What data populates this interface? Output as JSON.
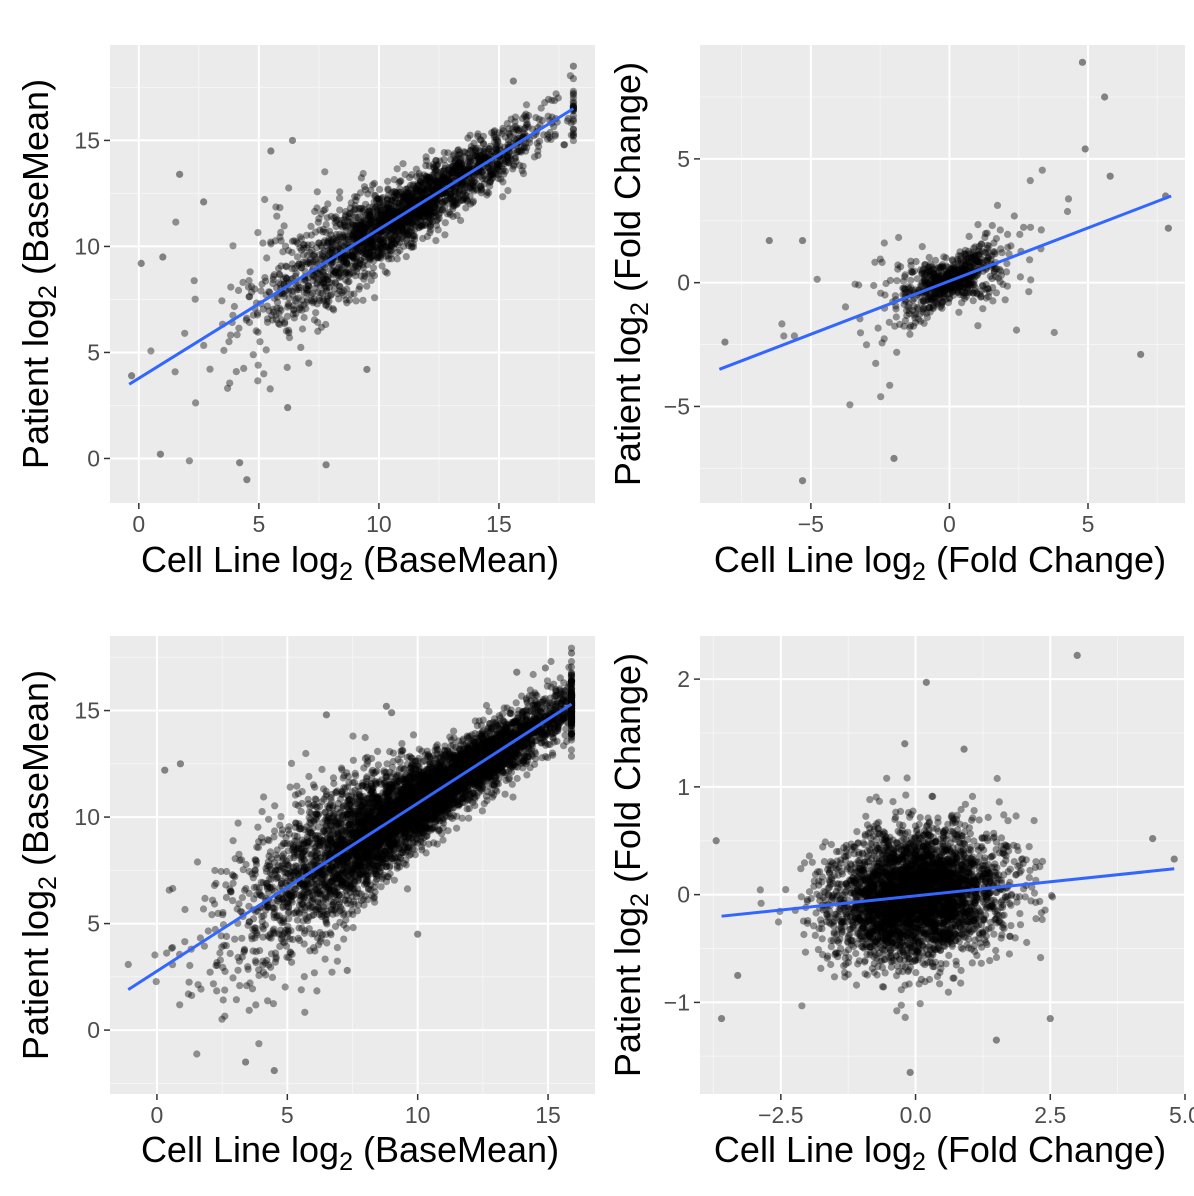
{
  "colors": {
    "panel_bg": "#ebebeb",
    "grid_major": "#ffffff",
    "points": "#000000",
    "fit_line": "#3366ff",
    "tick_text": "#4d4d4d"
  },
  "chart_data": [
    {
      "type": "scatter",
      "xlabel": "Cell Line log2 (BaseMean)",
      "ylabel": "Patient log2 (BaseMean)",
      "xlabel_parts": {
        "pre": "Cell Line log",
        "sub": "2",
        "post": " (BaseMean)"
      },
      "ylabel_parts": {
        "pre": "Patient log",
        "sub": "2",
        "post": " (BaseMean)"
      },
      "xlim": [
        -1.2,
        19
      ],
      "ylim": [
        -2.1,
        19.5
      ],
      "xticks": [
        0,
        5,
        10,
        15
      ],
      "yticks": [
        0,
        5,
        10,
        15
      ],
      "xtick_labels": [
        "0",
        "5",
        "10",
        "15"
      ],
      "ytick_labels": [
        "0",
        "5",
        "10",
        "15"
      ],
      "grid": true,
      "fit_line": {
        "x": [
          -0.4,
          18.1
        ],
        "y": [
          3.5,
          16.5
        ]
      },
      "point_cloud": {
        "n": 2200,
        "x_center": 11,
        "x_sd": 3.0,
        "y_noise_sd": 1.2,
        "min_x": -0.4,
        "max_x": 18.1
      },
      "outliers": [
        {
          "x": -0.3,
          "y": 3.9
        },
        {
          "x": 0.1,
          "y": 9.2
        },
        {
          "x": 1.0,
          "y": 9.5
        },
        {
          "x": 1.7,
          "y": 13.4
        },
        {
          "x": 4.2,
          "y": -0.2
        },
        {
          "x": 4.5,
          "y": -1.0
        },
        {
          "x": 7.8,
          "y": -0.3
        },
        {
          "x": 6.2,
          "y": 2.4
        },
        {
          "x": 15.6,
          "y": 17.8
        },
        {
          "x": 18.1,
          "y": 18.5
        },
        {
          "x": 0.9,
          "y": 0.2
        },
        {
          "x": 2.7,
          "y": 12.1
        },
        {
          "x": 5.5,
          "y": 14.5
        },
        {
          "x": 6.4,
          "y": 15.0
        },
        {
          "x": 9.5,
          "y": 4.2
        }
      ]
    },
    {
      "type": "scatter",
      "xlabel": "Cell Line log2 (Fold Change)",
      "ylabel": "Patient log2 (Fold Change)",
      "xlabel_parts": {
        "pre": "Cell Line log",
        "sub": "2",
        "post": " (Fold Change)"
      },
      "ylabel_parts": {
        "pre": "Patient log",
        "sub": "2",
        "post": " (Fold Change)"
      },
      "xlim": [
        -9.0,
        8.5
      ],
      "ylim": [
        -8.9,
        9.6
      ],
      "xticks": [
        -5,
        0,
        5
      ],
      "yticks": [
        -5,
        0,
        5
      ],
      "xtick_labels": [
        "−5",
        "0",
        "5"
      ],
      "ytick_labels": [
        "−5",
        "0",
        "5"
      ],
      "grid": true,
      "fit_line": {
        "x": [
          -8.3,
          8.0
        ],
        "y": [
          -3.5,
          3.5
        ]
      },
      "point_cloud": {
        "n": 700,
        "x_center": 0,
        "x_sd": 1.3,
        "y_noise_sd": 0.9,
        "min_x": -8.3,
        "max_x": 8.0
      },
      "outliers": [
        {
          "x": 4.8,
          "y": 8.9
        },
        {
          "x": 5.6,
          "y": 7.5
        },
        {
          "x": 4.9,
          "y": 5.4
        },
        {
          "x": 7.8,
          "y": 3.5
        },
        {
          "x": 6.9,
          "y": -2.9
        },
        {
          "x": -5.3,
          "y": -8.0
        },
        {
          "x": -2.0,
          "y": -7.1
        },
        {
          "x": -8.1,
          "y": -2.4
        },
        {
          "x": -6.5,
          "y": 1.7
        },
        {
          "x": -5.3,
          "y": 1.7
        },
        {
          "x": 7.9,
          "y": 2.2
        },
        {
          "x": 5.8,
          "y": 4.3
        }
      ]
    },
    {
      "type": "scatter",
      "xlabel": "Cell Line log2 (BaseMean)",
      "ylabel": "Patient log2 (BaseMean)",
      "xlabel_parts": {
        "pre": "Cell Line log",
        "sub": "2",
        "post": " (BaseMean)"
      },
      "ylabel_parts": {
        "pre": "Patient log",
        "sub": "2",
        "post": " (BaseMean)"
      },
      "xlim": [
        -1.8,
        16.8
      ],
      "ylim": [
        -3.0,
        18.5
      ],
      "xticks": [
        0,
        5,
        10,
        15
      ],
      "yticks": [
        0,
        5,
        10,
        15
      ],
      "xtick_labels": [
        "0",
        "5",
        "10",
        "15"
      ],
      "ytick_labels": [
        "0",
        "5",
        "10",
        "15"
      ],
      "grid": true,
      "fit_line": {
        "x": [
          -1.1,
          15.9
        ],
        "y": [
          1.9,
          15.3
        ]
      },
      "point_cloud": {
        "n": 5500,
        "x_center": 10,
        "x_sd": 3.2,
        "y_noise_sd": 1.3,
        "min_x": -1.1,
        "max_x": 15.9
      },
      "outliers": [
        {
          "x": 15.9,
          "y": 17.7
        },
        {
          "x": 14.9,
          "y": 17.0
        },
        {
          "x": 13.8,
          "y": 16.8
        },
        {
          "x": 8.8,
          "y": 15.2
        },
        {
          "x": 9.0,
          "y": 14.9
        },
        {
          "x": 6.5,
          "y": 14.8
        },
        {
          "x": 0.9,
          "y": 12.5
        },
        {
          "x": 0.3,
          "y": 12.2
        },
        {
          "x": 10.0,
          "y": 4.5
        },
        {
          "x": 7.3,
          "y": 2.8
        },
        {
          "x": 3.4,
          "y": -1.5
        },
        {
          "x": 4.5,
          "y": -1.9
        }
      ]
    },
    {
      "type": "scatter",
      "xlabel": "Cell Line log2 (Fold Change)",
      "ylabel": "Patient log2 (Fold Change)",
      "xlabel_parts": {
        "pre": "Cell Line log",
        "sub": "2",
        "post": " (Fold Change)"
      },
      "ylabel_parts": {
        "pre": "Patient log",
        "sub": "2",
        "post": " (Fold Change)"
      },
      "xlim": [
        -4.0,
        5.0
      ],
      "ylim": [
        -1.85,
        2.4
      ],
      "xticks": [
        -2.5,
        0.0,
        2.5,
        5.0
      ],
      "yticks": [
        -1,
        0,
        1,
        2
      ],
      "xtick_labels": [
        "−2.5",
        "0.0",
        "2.5",
        "5.0"
      ],
      "ytick_labels": [
        "−1",
        "0",
        "1",
        "2"
      ],
      "grid": true,
      "fit_line": {
        "x": [
          -3.6,
          4.8
        ],
        "y": [
          -0.2,
          0.24
        ]
      },
      "point_cloud": {
        "n": 3500,
        "x_center": 0,
        "x_sd": 0.8,
        "y_noise_sd": 0.3,
        "min_x": -3.8,
        "max_x": 4.8
      },
      "outliers": [
        {
          "x": 3.0,
          "y": 2.22
        },
        {
          "x": 0.2,
          "y": 1.97
        },
        {
          "x": -0.2,
          "y": 1.4
        },
        {
          "x": 0.9,
          "y": 1.35
        },
        {
          "x": 4.8,
          "y": 0.33
        },
        {
          "x": -3.6,
          "y": -1.15
        },
        {
          "x": -0.1,
          "y": -1.65
        },
        {
          "x": 2.5,
          "y": -1.15
        },
        {
          "x": 1.5,
          "y": -1.35
        },
        {
          "x": -3.7,
          "y": 0.5
        },
        {
          "x": -3.3,
          "y": -0.75
        },
        {
          "x": 4.4,
          "y": 0.52
        }
      ]
    }
  ]
}
